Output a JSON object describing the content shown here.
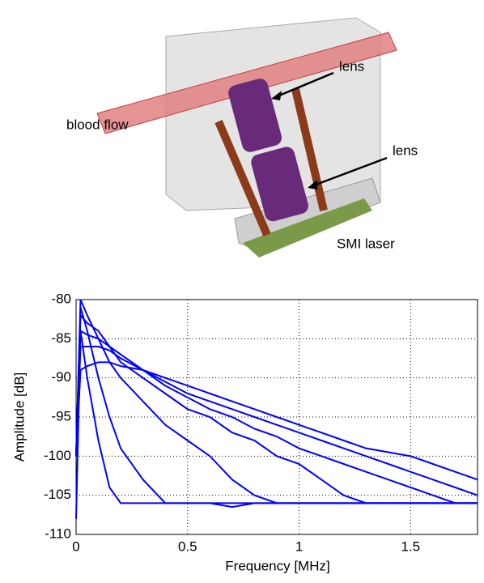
{
  "illustration": {
    "labels": [
      "lens",
      "blood flow",
      "lens",
      "SMI laser"
    ]
  },
  "chart_data": {
    "type": "line",
    "x_label": "Frequency [MHz]",
    "y_label": "Amplitude [dB]",
    "x": [
      0,
      0.02,
      0.05,
      0.1,
      0.15,
      0.2,
      0.3,
      0.4,
      0.5,
      0.6,
      0.7,
      0.8,
      0.9,
      1.0,
      1.1,
      1.2,
      1.3,
      1.4,
      1.5,
      1.6,
      1.7,
      1.8
    ],
    "series": [
      {
        "color": "#0000ff",
        "values": [
          -108,
          -84,
          -90,
          -98,
          -104,
          -106,
          -106,
          -106,
          -106,
          -106,
          -106,
          -106,
          -106,
          -106,
          -106,
          -106,
          -106,
          -106,
          -106,
          -106,
          -106,
          -106
        ]
      },
      {
        "color": "#0000ff",
        "values": [
          -100,
          -81,
          -84,
          -90,
          -95,
          -99,
          -103,
          -106,
          -106,
          -106,
          -106.5,
          -106,
          -106,
          -106,
          -106,
          -106,
          -106,
          -106,
          -106,
          -106,
          -106,
          -106
        ]
      },
      {
        "color": "#0000ff",
        "values": [
          -100,
          -80,
          -82,
          -85,
          -88,
          -90,
          -93,
          -96,
          -98,
          -100,
          -103,
          -105,
          -106,
          -106,
          -106,
          -106,
          -106,
          -106,
          -106,
          -106,
          -106,
          -106
        ]
      },
      {
        "color": "#0000ff",
        "values": [
          -100,
          -82,
          -83,
          -84,
          -86,
          -88,
          -90,
          -92,
          -94,
          -95,
          -97,
          -98,
          -100,
          -101,
          -103,
          -105,
          -106,
          -106,
          -106,
          -106,
          -106,
          -106
        ]
      },
      {
        "color": "#0000ff",
        "values": [
          -100,
          -84,
          -84.5,
          -85,
          -86,
          -87,
          -89,
          -91,
          -92.5,
          -94,
          -95,
          -96.5,
          -97.5,
          -99,
          -100,
          -101,
          -102,
          -103,
          -104,
          -105,
          -106,
          -106
        ]
      },
      {
        "color": "#0000ff",
        "values": [
          -100,
          -86,
          -86,
          -86,
          -86.5,
          -87.5,
          -89,
          -90.5,
          -92,
          -93,
          -94,
          -95,
          -96,
          -97,
          -98,
          -99,
          -100,
          -101,
          -102,
          -103,
          -104,
          -105
        ]
      },
      {
        "color": "#0000ff",
        "values": [
          -100,
          -89,
          -88.5,
          -88,
          -88,
          -88.5,
          -89,
          -90,
          -91,
          -92,
          -93,
          -94,
          -95,
          -96,
          -97,
          -98,
          -99,
          -99.5,
          -100,
          -101,
          -102,
          -103
        ]
      }
    ],
    "xlim": [
      0,
      1.8
    ],
    "xticks": [
      0,
      0.5,
      1,
      1.5
    ],
    "ylim": [
      -110,
      -80
    ],
    "yticks": [
      -110,
      -105,
      -100,
      -95,
      -90,
      -85,
      -80
    ],
    "grid": true
  }
}
